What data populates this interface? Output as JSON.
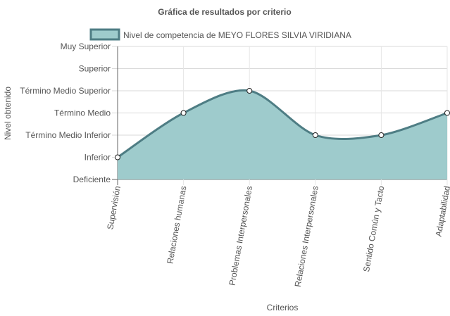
{
  "chart_data": {
    "type": "area",
    "title": "Gráfica de resultados por criterio",
    "xlabel": "Criterios",
    "ylabel": "Nivel obtenido",
    "categories": [
      "Supervisión",
      "Relaciones humanas",
      "Problemas Interpersonales",
      "Relaciones Interpersonales",
      "Sentido Común y Tacto",
      "Adaptabilidad"
    ],
    "y_levels": [
      "Deficiente",
      "Inferior",
      "Término Medio Inferior",
      "Término Medio",
      "Término Medio Superior",
      "Superior",
      "Muy Superior"
    ],
    "ylim": [
      0,
      6
    ],
    "grid": true,
    "legend_position": "top",
    "series": [
      {
        "name": "Nivel de competencia de MEYO FLORES SILVIA VIRIDIANA",
        "values": [
          1,
          3,
          4,
          2,
          2,
          3
        ],
        "color": "#4e7d84",
        "fill": "#9ecbcc"
      }
    ]
  }
}
